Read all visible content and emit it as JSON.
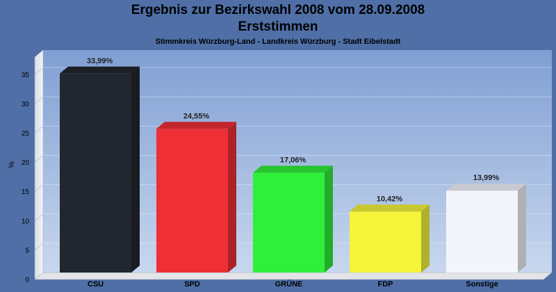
{
  "header": {
    "title": "Ergebnis zur Bezirkswahl 2008 vom 28.09.2008",
    "subtitle": "Erststimmen",
    "caption": "Stimmkreis Würzburg-Land - Landkreis Würzburg - Stadt Eibelstadt"
  },
  "chart_data": {
    "type": "bar",
    "title": "Ergebnis zur Bezirkswahl 2008 vom 28.09.2008",
    "subtitle": "Erststimmen",
    "xlabel": "",
    "ylabel": "%",
    "ylim": [
      0,
      38
    ],
    "yticks": [
      0,
      5,
      10,
      15,
      20,
      25,
      30,
      35
    ],
    "grid": true,
    "categories": [
      "CSU",
      "SPD",
      "GRÜNE",
      "FDP",
      "Sonstige"
    ],
    "values": [
      33.99,
      24.55,
      17.06,
      10.42,
      13.99
    ],
    "value_labels": [
      "33,99%",
      "24,55%",
      "17,06%",
      "10,42%",
      "13,99%"
    ],
    "colors": [
      "#22262e",
      "#ee2f36",
      "#30ef3a",
      "#f4f43a",
      "#f3f5fb"
    ]
  },
  "colors": {
    "background": "#4f6fa6",
    "plot_top": "#7f9fd3",
    "plot_bottom": "#c6d6ee"
  }
}
